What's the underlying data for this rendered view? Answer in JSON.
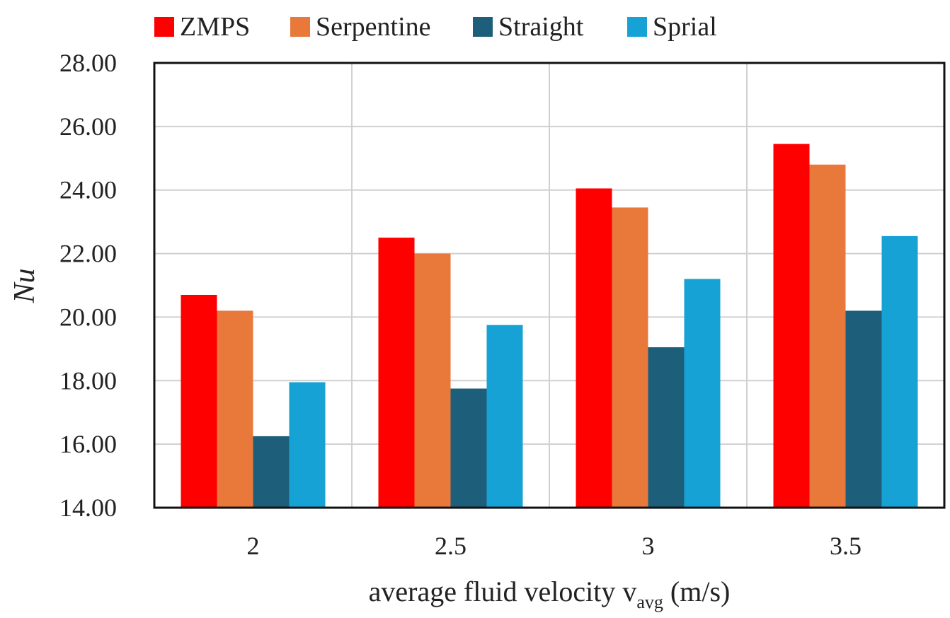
{
  "chart_data": {
    "type": "bar",
    "title": "",
    "xlabel": "average fluid velocity v",
    "xlabel_sub": "avg",
    "xlabel_unit": " (m/s)",
    "ylabel": "Nu",
    "ylim": [
      14,
      28
    ],
    "ytick_step": 2,
    "ytick_labels": [
      "14.00",
      "16.00",
      "18.00",
      "20.00",
      "22.00",
      "24.00",
      "26.00",
      "28.00"
    ],
    "categories": [
      "2",
      "2.5",
      "3",
      "3.5"
    ],
    "legend_position": "top",
    "grid": true,
    "series": [
      {
        "name": "ZMPS",
        "color": "#ff0000",
        "values": [
          20.7,
          22.5,
          24.05,
          25.45
        ]
      },
      {
        "name": "Serpentine",
        "color": "#e8793a",
        "values": [
          20.2,
          22.0,
          23.45,
          24.8
        ]
      },
      {
        "name": "Straight",
        "color": "#1d5f7a",
        "values": [
          16.25,
          17.75,
          19.05,
          20.2
        ]
      },
      {
        "name": "Sprial",
        "color": "#17a2d6",
        "values": [
          17.95,
          19.75,
          21.2,
          22.55
        ]
      }
    ]
  }
}
